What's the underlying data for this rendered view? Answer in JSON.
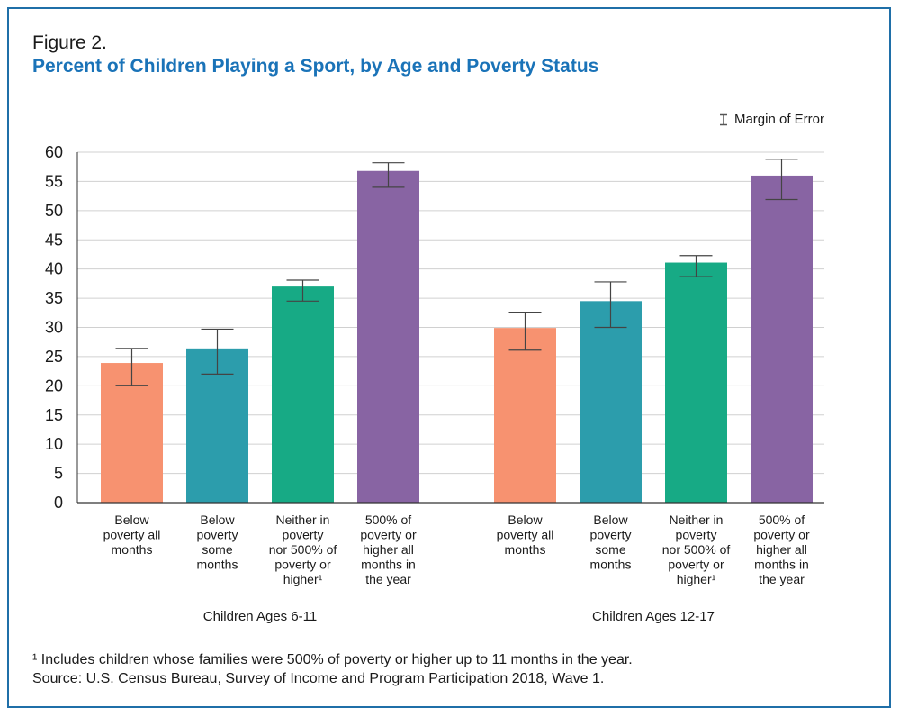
{
  "figure_label": "Figure 2.",
  "legend_label": "Margin of Error",
  "footnote_1": "¹ Includes children whose families were 500% of poverty or higher up to 11 months in the year.",
  "source": "Source: U.S. Census Bureau, Survey of Income and Program Participation 2018, Wave 1.",
  "colors": {
    "below_all": "#f79270",
    "below_some": "#2c9dac",
    "neither": "#17aa85",
    "high": "#8864a3",
    "title": "#1a73b8",
    "frame": "#1f6fa8"
  },
  "chart_data": {
    "type": "bar",
    "title": "Percent of Children Playing a Sport, by Age and Poverty Status",
    "xlabel": "",
    "ylabel": "",
    "ylim": [
      0,
      60
    ],
    "yticks": [
      0,
      5,
      10,
      15,
      20,
      25,
      30,
      35,
      40,
      45,
      50,
      55,
      60
    ],
    "grid": true,
    "legend_position": "top-right",
    "categories": [
      [
        "Below",
        "poverty all",
        "months"
      ],
      [
        "Below",
        "poverty",
        "some",
        "months"
      ],
      [
        "Neither in",
        "poverty",
        "nor 500% of",
        "poverty or",
        "higher¹"
      ],
      [
        "500% of",
        "poverty or",
        "higher all",
        "months in",
        "the year"
      ]
    ],
    "groups": [
      {
        "name": "Children Ages 6-11",
        "values": [
          23.9,
          26.4,
          37.0,
          56.8
        ],
        "moe_low": [
          20.1,
          22.0,
          34.5,
          54.0
        ],
        "moe_high": [
          26.4,
          29.7,
          38.1,
          58.2
        ]
      },
      {
        "name": "Children Ages 12-17",
        "values": [
          29.9,
          34.5,
          41.1,
          56.0
        ],
        "moe_low": [
          26.1,
          30.0,
          38.7,
          51.9
        ],
        "moe_high": [
          32.6,
          37.8,
          42.3,
          58.8
        ]
      }
    ]
  }
}
